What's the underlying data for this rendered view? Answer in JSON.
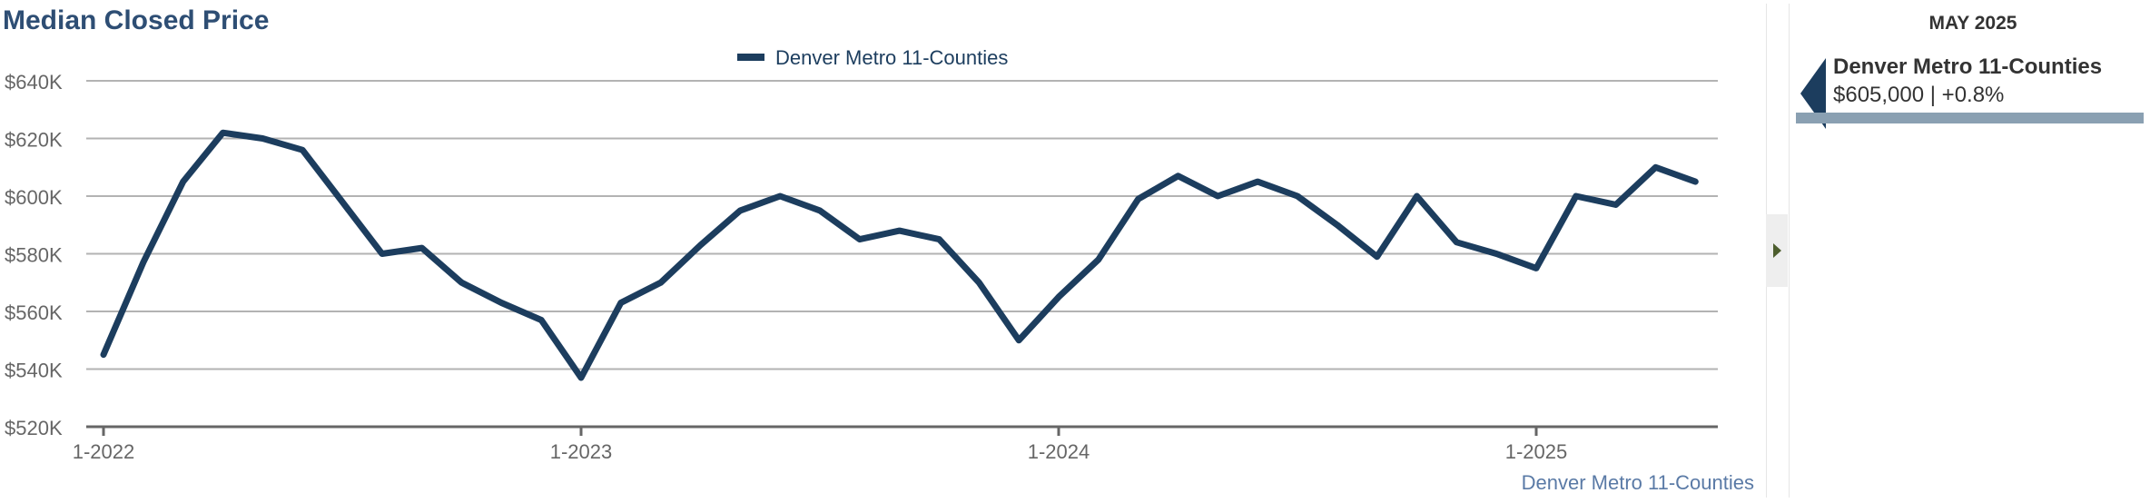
{
  "title": "Median Closed Price",
  "colors": {
    "series": "#1c3d5e",
    "title": "#2e4e74",
    "grid": "#b3b3b3",
    "axis": "#666666",
    "credit": "#5a7aa6",
    "panel_bar": "#8aa0b2"
  },
  "chart_data": {
    "type": "line",
    "title": "Median Closed Price",
    "xlabel": "",
    "ylabel": "",
    "ylim": [
      520000,
      640000
    ],
    "y_ticks": [
      520000,
      540000,
      560000,
      580000,
      600000,
      620000,
      640000
    ],
    "y_tick_labels": [
      "$520K",
      "$540K",
      "$560K",
      "$580K",
      "$600K",
      "$620K",
      "$640K"
    ],
    "x_start": "2022-01",
    "x_ticks": [
      0,
      12,
      24,
      36
    ],
    "x_tick_labels": [
      "1-2022",
      "1-2023",
      "1-2024",
      "1-2025"
    ],
    "grid": true,
    "legend_position": "top-center",
    "series": [
      {
        "name": "Denver Metro 11-Counties",
        "values": [
          545000,
          577000,
          605000,
          622000,
          620000,
          616000,
          598000,
          580000,
          582000,
          570000,
          563000,
          557000,
          537000,
          563000,
          570000,
          583000,
          595000,
          600000,
          595000,
          585000,
          588000,
          585000,
          570000,
          550000,
          565000,
          578000,
          599000,
          607000,
          600000,
          605000,
          600000,
          590000,
          579000,
          600000,
          584000,
          580000,
          575000,
          600000,
          597000,
          610000,
          605000
        ]
      }
    ]
  },
  "credit": "Denver Metro 11-Counties",
  "panel": {
    "date": "MAY 2025",
    "series_name": "Denver Metro 11-Counties",
    "value_text": "$605,000 | +0.8%"
  }
}
